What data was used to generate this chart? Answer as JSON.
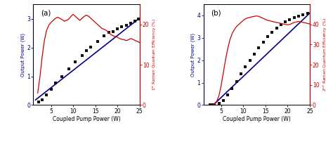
{
  "panel_a": {
    "label": "(a)",
    "scatter_x": [
      2.2,
      3.0,
      4.0,
      5.0,
      6.0,
      7.5,
      9.0,
      10.5,
      12.0,
      13.0,
      14.0,
      15.5,
      17.0,
      18.0,
      19.0,
      20.0,
      21.0,
      22.0,
      23.0,
      24.0,
      24.8
    ],
    "scatter_y": [
      0.1,
      0.18,
      0.35,
      0.55,
      0.78,
      1.0,
      1.25,
      1.5,
      1.72,
      1.88,
      2.02,
      2.2,
      2.4,
      2.52,
      2.55,
      2.65,
      2.72,
      2.78,
      2.85,
      2.92,
      2.98
    ],
    "line_x": [
      1.5,
      25.0
    ],
    "line_y": [
      0.18,
      3.02
    ],
    "red_x": [
      2.0,
      2.5,
      3.0,
      3.5,
      4.0,
      4.5,
      5.0,
      5.5,
      6.0,
      6.5,
      7.0,
      7.5,
      8.0,
      8.5,
      9.0,
      9.5,
      10.0,
      10.5,
      11.0,
      11.5,
      12.0,
      12.5,
      13.0,
      13.5,
      14.0,
      14.5,
      15.0,
      15.5,
      16.0,
      16.5,
      17.0,
      17.5,
      18.0,
      18.5,
      19.0,
      19.5,
      20.0,
      20.5,
      21.0,
      21.5,
      22.0,
      22.5,
      23.0,
      23.5,
      24.0,
      24.5,
      25.0
    ],
    "red_y": [
      3.0,
      7.0,
      12.0,
      16.0,
      18.5,
      19.8,
      20.5,
      21.0,
      21.5,
      21.8,
      21.5,
      21.2,
      20.8,
      21.0,
      21.3,
      22.0,
      22.5,
      22.0,
      21.5,
      21.0,
      21.5,
      22.0,
      22.3,
      22.0,
      21.5,
      21.0,
      20.5,
      20.0,
      19.5,
      19.0,
      18.8,
      18.5,
      18.0,
      17.5,
      17.2,
      17.0,
      16.8,
      16.5,
      16.3,
      16.2,
      16.0,
      16.2,
      16.5,
      16.3,
      16.0,
      15.8,
      15.5
    ],
    "ylabel_left": "Output Power (W)",
    "ylabel_right": "1$^{st}$ Raman Quantum Efficiency (%)",
    "xlabel": "Coupled Pump Power (W)",
    "ylim_left": [
      0,
      3.5
    ],
    "ylim_right": [
      0,
      25
    ],
    "yticks_left": [
      0,
      1,
      2,
      3
    ],
    "yticks_right": [
      0,
      10,
      20
    ],
    "xlim": [
      1,
      25
    ],
    "xticks": [
      5,
      10,
      15,
      20,
      25
    ]
  },
  "panel_b": {
    "label": "(b)",
    "scatter_x": [
      2.5,
      3.0,
      3.5,
      4.5,
      5.5,
      6.5,
      7.5,
      8.5,
      9.5,
      10.5,
      11.5,
      12.5,
      13.5,
      14.5,
      15.5,
      16.5,
      17.5,
      18.5,
      19.5,
      20.5,
      21.5,
      22.5,
      23.5,
      24.5
    ],
    "scatter_y": [
      0.0,
      0.0,
      0.02,
      0.08,
      0.2,
      0.45,
      0.75,
      1.05,
      1.4,
      1.7,
      2.0,
      2.28,
      2.55,
      2.8,
      3.05,
      3.25,
      3.45,
      3.6,
      3.72,
      3.82,
      3.9,
      3.97,
      4.02,
      4.08
    ],
    "line_x": [
      3.2,
      25.0
    ],
    "line_y": [
      0.0,
      4.1
    ],
    "red_x": [
      2.0,
      2.5,
      3.0,
      3.5,
      4.0,
      4.5,
      5.0,
      5.5,
      6.0,
      6.5,
      7.0,
      7.5,
      8.0,
      8.5,
      9.0,
      9.5,
      10.0,
      10.5,
      11.0,
      11.5,
      12.0,
      12.5,
      13.0,
      13.5,
      14.0,
      14.5,
      15.0,
      15.5,
      16.0,
      16.5,
      17.0,
      17.5,
      18.0,
      18.5,
      19.0,
      19.5,
      20.0,
      20.5,
      21.0,
      21.5,
      22.0,
      22.5,
      23.0,
      23.5,
      24.0,
      24.5,
      25.0
    ],
    "red_y": [
      0.0,
      0.0,
      0.1,
      0.5,
      1.8,
      4.5,
      9.5,
      16.0,
      22.5,
      28.0,
      32.5,
      35.5,
      37.5,
      39.0,
      40.0,
      41.0,
      42.0,
      42.8,
      43.2,
      43.5,
      43.8,
      44.0,
      44.2,
      44.0,
      43.5,
      43.0,
      42.5,
      42.0,
      41.8,
      41.5,
      41.2,
      41.0,
      40.8,
      40.5,
      40.2,
      40.0,
      39.8,
      40.0,
      40.5,
      41.0,
      41.2,
      41.5,
      41.2,
      41.0,
      40.8,
      40.5,
      40.2
    ],
    "ylabel_left": "Output Power (W)",
    "ylabel_right": "2$^{nd}$ Raman Quantum Efficiency (%)",
    "xlabel": "Coupled Pump Power (W)",
    "ylim_left": [
      0,
      4.5
    ],
    "ylim_right": [
      0,
      50
    ],
    "yticks_left": [
      0,
      1,
      2,
      3,
      4
    ],
    "yticks_right": [
      0,
      10,
      20,
      30,
      40
    ],
    "xlim": [
      1,
      25
    ],
    "xticks": [
      5,
      10,
      15,
      20,
      25
    ]
  },
  "blue_color": "#00008B",
  "red_color": "#CC0000",
  "scatter_color": "#111111",
  "background": "#ffffff",
  "fig_background": "#ffffff"
}
